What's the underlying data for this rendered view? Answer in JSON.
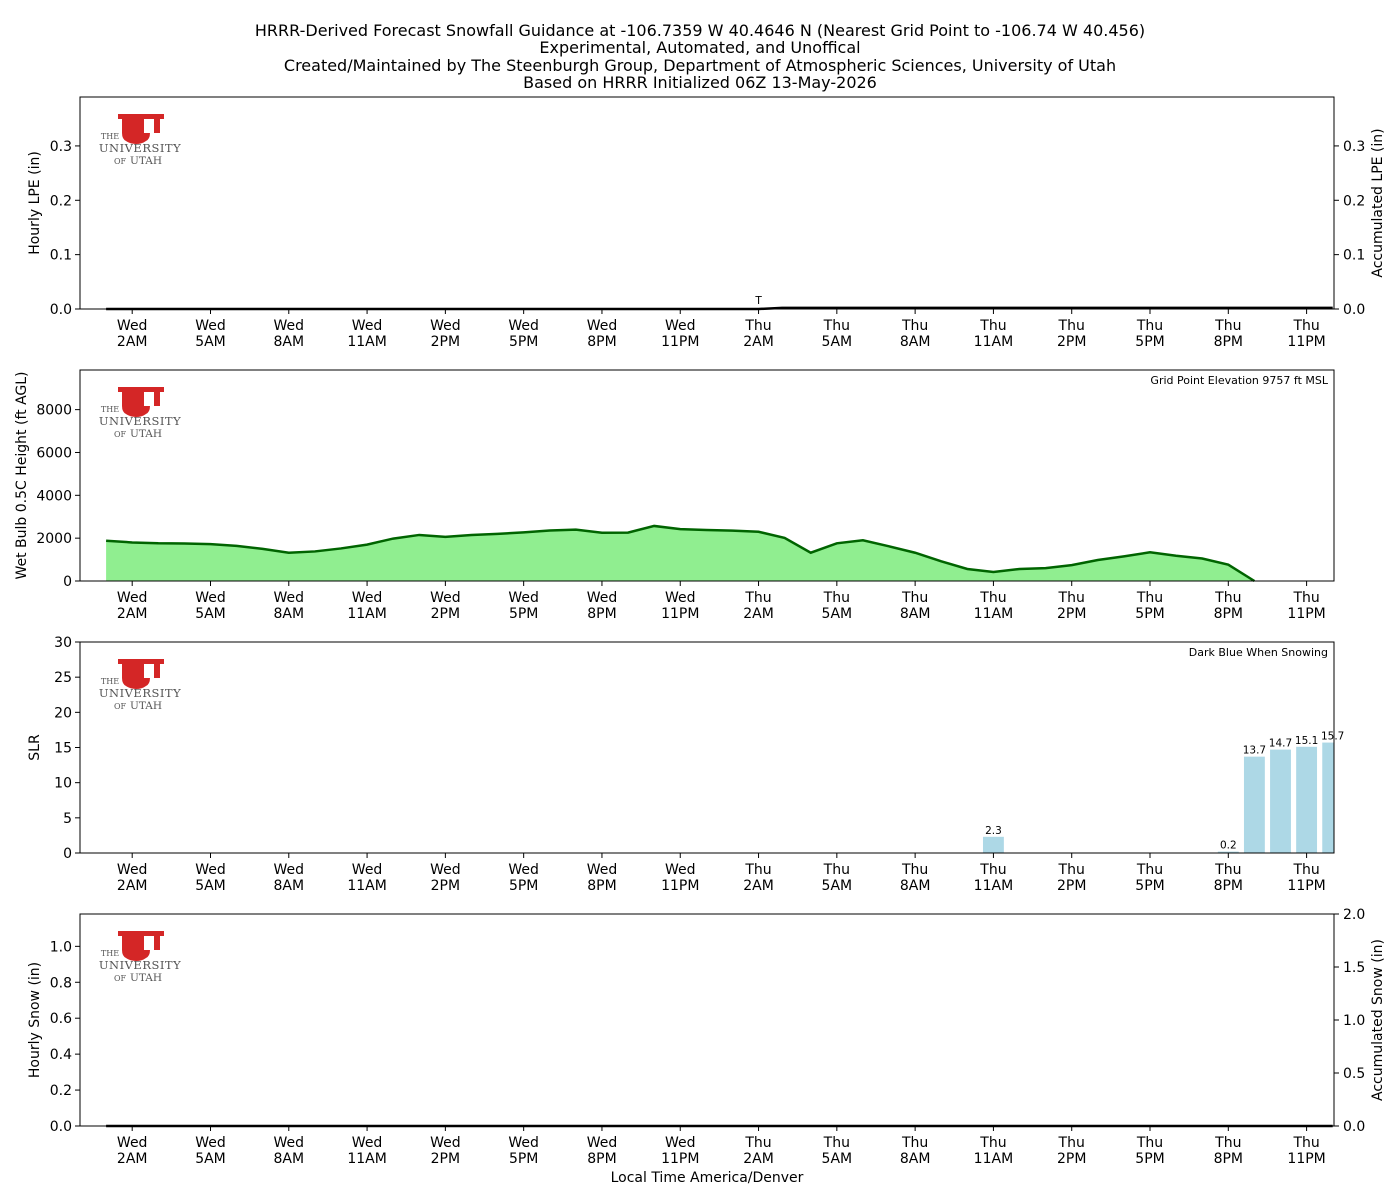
{
  "header": {
    "lines": [
      "HRRR-Derived Forecast Snowfall Guidance at -106.7359 W 40.4646 N (Nearest Grid Point to -106.74 W 40.456)",
      "Experimental, Automated, and Unoffical",
      "Created/Maintained by The Steenburgh Group, Department of Atmospheric Sciences, University of Utah",
      "Based on HRRR Initialized 06Z 13-May-2026"
    ]
  },
  "logo": {
    "line1": "THE",
    "line2": "UNIVERSITY",
    "line3a": "OF",
    "line3b": "UTAH",
    "color": "#cc0000"
  },
  "x_axis": {
    "label": "Local Time America/Denver",
    "ticks": [
      {
        "h": 1,
        "day": "Wed",
        "time": "2AM"
      },
      {
        "h": 4,
        "day": "Wed",
        "time": "5AM"
      },
      {
        "h": 7,
        "day": "Wed",
        "time": "8AM"
      },
      {
        "h": 10,
        "day": "Wed",
        "time": "11AM"
      },
      {
        "h": 13,
        "day": "Wed",
        "time": "2PM"
      },
      {
        "h": 16,
        "day": "Wed",
        "time": "5PM"
      },
      {
        "h": 19,
        "day": "Wed",
        "time": "8PM"
      },
      {
        "h": 22,
        "day": "Wed",
        "time": "11PM"
      },
      {
        "h": 25,
        "day": "Thu",
        "time": "2AM"
      },
      {
        "h": 28,
        "day": "Thu",
        "time": "5AM"
      },
      {
        "h": 31,
        "day": "Thu",
        "time": "8AM"
      },
      {
        "h": 34,
        "day": "Thu",
        "time": "11AM"
      },
      {
        "h": 37,
        "day": "Thu",
        "time": "2PM"
      },
      {
        "h": 40,
        "day": "Thu",
        "time": "5PM"
      },
      {
        "h": 43,
        "day": "Thu",
        "time": "8PM"
      },
      {
        "h": 46,
        "day": "Thu",
        "time": "11PM"
      }
    ],
    "hour_range": [
      0,
      47
    ]
  },
  "chart_data": [
    {
      "type": "line",
      "name": "lpe",
      "ylabel": "Hourly LPE (in)",
      "ylabel_right": "Accumulated LPE (in)",
      "ylim": [
        0,
        0.39
      ],
      "yticks": [
        0.0,
        0.1,
        0.2,
        0.3
      ],
      "yticks_right": [
        0.0,
        0.1,
        0.2,
        0.3
      ],
      "line": {
        "x": [
          0,
          25,
          25.9,
          47
        ],
        "y": [
          0.0,
          0.0,
          0.002,
          0.002
        ]
      },
      "annotations": [
        {
          "x": 25,
          "y": 0.002,
          "text": "T"
        }
      ],
      "color": "#000000"
    },
    {
      "type": "area",
      "name": "wetbulb",
      "ylabel": "Wet Bulb 0.5C Height (ft AGL)",
      "ylim": [
        0,
        9850
      ],
      "yticks": [
        0,
        2000,
        4000,
        6000,
        8000
      ],
      "note": "Grid Point Elevation 9757 ft MSL",
      "x": [
        0,
        1,
        2,
        3,
        4,
        5,
        6,
        7,
        8,
        9,
        10,
        11,
        12,
        13,
        14,
        15,
        16,
        17,
        18,
        19,
        20,
        21,
        22,
        23,
        24,
        25,
        26,
        27,
        28,
        29,
        30,
        31,
        32,
        33,
        34,
        35,
        36,
        37,
        38,
        39,
        40,
        41,
        42,
        43,
        44
      ],
      "y": [
        1880,
        1800,
        1760,
        1750,
        1720,
        1640,
        1500,
        1320,
        1380,
        1520,
        1700,
        1980,
        2150,
        2060,
        2150,
        2200,
        2270,
        2360,
        2400,
        2250,
        2260,
        2570,
        2420,
        2380,
        2350,
        2300,
        2010,
        1320,
        1760,
        1900,
        1620,
        1320,
        920,
        560,
        420,
        560,
        600,
        740,
        980,
        1150,
        1340,
        1180,
        1050,
        760,
        0
      ],
      "fill": "#90ee90",
      "stroke": "#006400"
    },
    {
      "type": "bar",
      "name": "slr",
      "ylabel": "SLR",
      "ylim": [
        0,
        30
      ],
      "yticks": [
        0,
        5,
        10,
        15,
        20,
        25,
        30
      ],
      "note": "Dark Blue When Snowing",
      "bars": [
        {
          "x": 34,
          "value": 2.3,
          "label": "2.3"
        },
        {
          "x": 43,
          "value": 0.2,
          "label": "0.2"
        },
        {
          "x": 44,
          "value": 13.7,
          "label": "13.7"
        },
        {
          "x": 45,
          "value": 14.7,
          "label": "14.7"
        },
        {
          "x": 46,
          "value": 15.1,
          "label": "15.1"
        },
        {
          "x": 47,
          "value": 15.7,
          "label": "15.7"
        }
      ],
      "color": "#add8e6"
    },
    {
      "type": "line",
      "name": "snow",
      "ylabel": "Hourly Snow (in)",
      "ylabel_right": "Accumulated Snow (in)",
      "ylim": [
        0,
        1.18
      ],
      "yticks": [
        0.0,
        0.2,
        0.4,
        0.6,
        0.8,
        1.0
      ],
      "ylim_right": [
        0,
        2.0
      ],
      "yticks_right": [
        0.0,
        0.5,
        1.0,
        1.5,
        2.0
      ],
      "line": {
        "x": [
          0,
          47
        ],
        "y": [
          0.0,
          0.0
        ]
      },
      "color": "#000000"
    }
  ]
}
